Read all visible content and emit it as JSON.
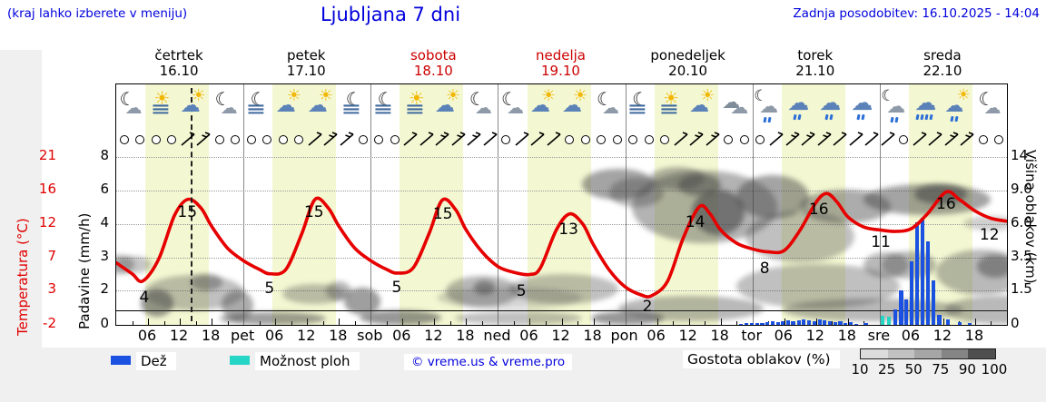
{
  "header": {
    "note": "(kraj lahko izberete v meniju)",
    "title": "Ljubljana 7 dni",
    "updated": "Zadnja posodobitev: 16.10.2025 - 14:04"
  },
  "days": [
    {
      "name": "četrtek",
      "date": "16.10",
      "color": "#000000"
    },
    {
      "name": "petek",
      "date": "17.10",
      "color": "#000000"
    },
    {
      "name": "sobota",
      "date": "18.10",
      "color": "#cc0000"
    },
    {
      "name": "nedelja",
      "date": "19.10",
      "color": "#cc0000"
    },
    {
      "name": "ponedeljek",
      "date": "20.10",
      "color": "#000000"
    },
    {
      "name": "torek",
      "date": "21.10",
      "color": "#000000"
    },
    {
      "name": "sreda",
      "date": "22.10",
      "color": "#000000"
    }
  ],
  "axes": {
    "temp_title": "Temperatura (°C)",
    "precip_title": "Padavine (mm/h)",
    "cloud_title": "Višina oblakov (km)",
    "temp_labels": [
      "21",
      "16",
      "12",
      "7",
      "3",
      "-2"
    ],
    "precip_labels": [
      "8",
      "6",
      "4",
      "3",
      "2",
      "0"
    ],
    "cloud_labels": [
      "14",
      "9.0",
      "6.0",
      "3.5",
      "1.5",
      "0"
    ]
  },
  "x_labels": [
    "06",
    "12",
    "18",
    "pet",
    "06",
    "12",
    "18",
    "sob",
    "06",
    "12",
    "18",
    "ned",
    "06",
    "12",
    "18",
    "pon",
    "06",
    "12",
    "18",
    "tor",
    "06",
    "12",
    "18",
    "sre",
    "06",
    "12",
    "18"
  ],
  "icons": [
    "moon-cloud",
    "sun-fog",
    "sun-cloud",
    "moon-cloud",
    "moon-fog",
    "sun-cloud",
    "sun-cloud",
    "moon-fog",
    "moon-fog",
    "sun-fog",
    "sun-cloud",
    "moon-cloud",
    "moon-cloud",
    "sun-cloud",
    "sun-cloud",
    "moon-cloud",
    "moon-fog",
    "sun-fog",
    "sun-cloud",
    "cloud",
    "moon-cloud-rain",
    "cloud-rain",
    "cloud-rain",
    "cloud-rain",
    "moon-cloud-rain",
    "cloud-rain-heavy",
    "sun-cloud-rain",
    "moon-cloud"
  ],
  "wind": [
    "o",
    "o",
    "o",
    "o",
    "b",
    "B",
    "o",
    "o",
    "o",
    "o",
    "o",
    "o",
    "b",
    "B",
    "B",
    "o",
    "o",
    "o",
    "b",
    "b",
    "B",
    "B",
    "B",
    "b",
    "o",
    "b",
    "b",
    "b",
    "o",
    "o",
    "o",
    "o",
    "o",
    "o",
    "o",
    "b",
    "B",
    "B",
    "o",
    "o",
    "o",
    "b",
    "B",
    "B",
    "B",
    "b",
    "b",
    "b",
    "b",
    "o",
    "b",
    "b",
    "B",
    "B",
    "o",
    "o"
  ],
  "legend": {
    "rain": "Dež",
    "shower": "Možnost ploh",
    "copyright": "© vreme.us & vreme.pro",
    "cloud_density": "Gostota oblakov (%)",
    "scale_labels": [
      "10",
      "25",
      "50",
      "75",
      "90",
      "100"
    ],
    "scale_colors": [
      "#dcdcdc",
      "#c2c2c2",
      "#a6a6a6",
      "#858585",
      "#4f4f4f"
    ]
  },
  "colors": {
    "accent_blue_text": "#0000dd",
    "temp_red": "#e60000",
    "rain_blue": "#1b51e0",
    "shower_cyan": "#25d5c5",
    "day_band_yellow": "#f4f8d2",
    "red_day": "#cc0000"
  },
  "chart_data": {
    "type": "meteogram",
    "hours_total": 168,
    "current_time_hour": 14,
    "day_band_hours": [
      5.5,
      17.5
    ],
    "scales": {
      "precip_mmh_values": [
        0,
        2,
        3,
        4,
        6,
        8
      ],
      "temp_c_range": [
        -2,
        21
      ],
      "cloud_km_values": [
        0,
        1.5,
        3.5,
        6,
        9,
        14
      ]
    },
    "temperature": {
      "unit": "°C",
      "points": [
        [
          0,
          6.5
        ],
        [
          3,
          5
        ],
        [
          5,
          4
        ],
        [
          8,
          7
        ],
        [
          11,
          13
        ],
        [
          13.5,
          15.2
        ],
        [
          16,
          14
        ],
        [
          18,
          11.5
        ],
        [
          21,
          8.5
        ],
        [
          24,
          6.8
        ],
        [
          27,
          5.6
        ],
        [
          29,
          5
        ],
        [
          32,
          5.6
        ],
        [
          35,
          10.5
        ],
        [
          37.5,
          15.2
        ],
        [
          40,
          14
        ],
        [
          42,
          11.5
        ],
        [
          45,
          8.5
        ],
        [
          48,
          6.8
        ],
        [
          51,
          5.6
        ],
        [
          53,
          5.1
        ],
        [
          56,
          5.8
        ],
        [
          59,
          10.5
        ],
        [
          61.5,
          15.1
        ],
        [
          64,
          13.8
        ],
        [
          66,
          11
        ],
        [
          69,
          8
        ],
        [
          72,
          6
        ],
        [
          75,
          5.2
        ],
        [
          78,
          4.9
        ],
        [
          80,
          5.8
        ],
        [
          83,
          11
        ],
        [
          85.5,
          13.2
        ],
        [
          88,
          11.8
        ],
        [
          90,
          9
        ],
        [
          93,
          5.5
        ],
        [
          96,
          3.2
        ],
        [
          99,
          2.1
        ],
        [
          101,
          2
        ],
        [
          104,
          4
        ],
        [
          107,
          10
        ],
        [
          110,
          14.2
        ],
        [
          112,
          13.2
        ],
        [
          114,
          11
        ],
        [
          117,
          9.2
        ],
        [
          120,
          8.4
        ],
        [
          123,
          8
        ],
        [
          126,
          8.2
        ],
        [
          129,
          11
        ],
        [
          132,
          14.8
        ],
        [
          134,
          16
        ],
        [
          136,
          14.8
        ],
        [
          138,
          12.8
        ],
        [
          141,
          11.4
        ],
        [
          144,
          11
        ],
        [
          147,
          10.8
        ],
        [
          150,
          11.2
        ],
        [
          153,
          13.2
        ],
        [
          156.5,
          16.2
        ],
        [
          159,
          15.2
        ],
        [
          162,
          13.6
        ],
        [
          165,
          12.6
        ],
        [
          168,
          12.2
        ]
      ],
      "labels": [
        {
          "text": "15",
          "h": 13.4,
          "t": 13.4
        },
        {
          "text": "15",
          "h": 37.3,
          "t": 13.4
        },
        {
          "text": "15",
          "h": 61.6,
          "t": 13.2
        },
        {
          "text": "13",
          "h": 85.3,
          "t": 11.1
        },
        {
          "text": "14",
          "h": 109.2,
          "t": 12.1
        },
        {
          "text": "16",
          "h": 132.5,
          "t": 13.8
        },
        {
          "text": "16",
          "h": 156.5,
          "t": 14.5
        },
        {
          "text": "4",
          "h": 5.3,
          "t": 1.7
        },
        {
          "text": "5",
          "h": 28.9,
          "t": 3.0
        },
        {
          "text": "5",
          "h": 52.9,
          "t": 3.1
        },
        {
          "text": "5",
          "h": 76.4,
          "t": 2.6
        },
        {
          "text": "2",
          "h": 100.2,
          "t": 0.5
        },
        {
          "text": "8",
          "h": 122.3,
          "t": 5.7
        },
        {
          "text": "11",
          "h": 144.2,
          "t": 9.3
        },
        {
          "text": "12",
          "h": 164.7,
          "t": 10.3
        }
      ]
    },
    "rain": {
      "unit": "mm/h",
      "bars": [
        [
          117.8,
          0.05
        ],
        [
          118.8,
          0.1
        ],
        [
          119.9,
          0.08
        ],
        [
          120.9,
          0.12
        ],
        [
          121.8,
          0.1
        ],
        [
          122.8,
          0.15
        ],
        [
          123.8,
          0.2
        ],
        [
          124.8,
          0.15
        ],
        [
          125.7,
          0.2
        ],
        [
          126.7,
          0.25
        ],
        [
          127.7,
          0.2
        ],
        [
          128.8,
          0.25
        ],
        [
          129.6,
          0.3
        ],
        [
          130.7,
          0.25
        ],
        [
          131.7,
          0.2
        ],
        [
          132.7,
          0.3
        ],
        [
          133.6,
          0.25
        ],
        [
          134.6,
          0.2
        ],
        [
          135.6,
          0.15
        ],
        [
          136.6,
          0.2
        ],
        [
          137.5,
          0.1
        ],
        [
          138.5,
          0.15
        ],
        [
          139.6,
          0.05
        ],
        [
          141.4,
          0.1
        ],
        [
          146.9,
          0.9
        ],
        [
          148,
          2.0
        ],
        [
          149,
          1.5
        ],
        [
          150,
          2.9
        ],
        [
          151,
          4.1
        ],
        [
          152.1,
          4.4
        ],
        [
          153.1,
          3.5
        ],
        [
          154.1,
          2.3
        ],
        [
          155.2,
          0.6
        ],
        [
          156.9,
          0.3
        ],
        [
          159.1,
          0.15
        ],
        [
          161,
          0.1
        ]
      ]
    },
    "showers": {
      "unit": "mm/h",
      "bars": [
        [
          144.5,
          0.55
        ],
        [
          145.7,
          0.5
        ]
      ]
    },
    "clouds": {
      "unit": "km",
      "blobs": [
        [
          0.5,
          3.1,
          3.0,
          0.6,
          0.5
        ],
        [
          3.3,
          3.1,
          3.4,
          0.55,
          0.4
        ],
        [
          7.7,
          0.95,
          3.1,
          0.6,
          0.75
        ],
        [
          14.7,
          1.55,
          9.4,
          0.9,
          0.45
        ],
        [
          17,
          2.0,
          3,
          0.5,
          0.55
        ],
        [
          22.8,
          0.85,
          3,
          0.65,
          0.6
        ],
        [
          29.6,
          0.25,
          10,
          0.3,
          0.7
        ],
        [
          37.3,
          1.4,
          6,
          0.5,
          0.45
        ],
        [
          42,
          1.55,
          2.4,
          0.5,
          0.5
        ],
        [
          46.4,
          1.05,
          3.4,
          0.6,
          0.7
        ],
        [
          53.6,
          0.3,
          7.7,
          0.35,
          0.75
        ],
        [
          69,
          1.6,
          6.8,
          0.8,
          0.5
        ],
        [
          69.5,
          1.7,
          2,
          0.4,
          0.65
        ],
        [
          74.2,
          1.2,
          13.7,
          0.5,
          0.3
        ],
        [
          75.9,
          0.3,
          12,
          0.3,
          0.45
        ],
        [
          84.4,
          1.7,
          10.3,
          0.8,
          0.45
        ],
        [
          94.7,
          10.2,
          6.8,
          2.0,
          0.65
        ],
        [
          96.4,
          0.3,
          6.8,
          0.3,
          0.75
        ],
        [
          98.1,
          9.2,
          5.1,
          1.7,
          0.5
        ],
        [
          105.8,
          10.8,
          5.1,
          1.7,
          0.55
        ],
        [
          108.4,
          0.7,
          13.7,
          0.55,
          0.5
        ],
        [
          111,
          8.3,
          13.7,
          3.7,
          0.55
        ],
        [
          113.5,
          7.2,
          5,
          2,
          0.8
        ],
        [
          110,
          10,
          4,
          1.5,
          0.7
        ],
        [
          123.8,
          8.9,
          6.8,
          2.4,
          0.65
        ],
        [
          129,
          5.2,
          10.3,
          2.0,
          0.45
        ],
        [
          132.4,
          1.9,
          15.4,
          1.2,
          0.45
        ],
        [
          137.5,
          7.6,
          8.6,
          1.5,
          0.6
        ],
        [
          142.7,
          0.65,
          17,
          0.5,
          0.5
        ],
        [
          145.2,
          3.1,
          4.3,
          0.8,
          0.5
        ],
        [
          149.5,
          3.1,
          5.1,
          0.9,
          0.5
        ],
        [
          152.9,
          8.4,
          12,
          1.6,
          0.65
        ],
        [
          155.5,
          8.9,
          5,
          1.1,
          0.8
        ],
        [
          163.2,
          2.7,
          8.6,
          1.4,
          0.5
        ],
        [
          165.8,
          3.0,
          3.4,
          0.7,
          0.65
        ],
        [
          166.6,
          0.65,
          10.3,
          0.6,
          0.5
        ],
        [
          164.9,
          6.1,
          5.1,
          0.6,
          0.35
        ]
      ]
    }
  }
}
